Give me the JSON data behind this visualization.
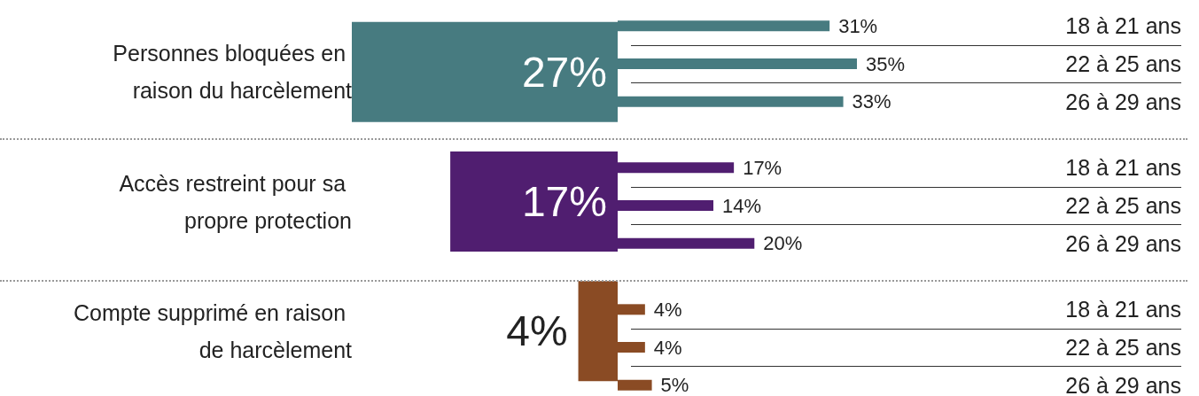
{
  "chart_data": [
    {
      "type": "bar",
      "orientation": "horizontal",
      "categories": [
        "Personnes bloquées en raison du harcèlement",
        "Accès restreint pour sa propre protection",
        "Compte supprimé en raison de harcèlement"
      ],
      "values": [
        27,
        17,
        4
      ],
      "colors": [
        "#477b80",
        "#501e70",
        "#8a4b24"
      ],
      "value_labels": [
        "27%",
        "17%",
        "4%"
      ],
      "tick_labels": "y"
    },
    {
      "type": "bar",
      "orientation": "horizontal",
      "categories": [
        "18 à 21 ans",
        "22 à 25 ans",
        "26 à 29 ans"
      ],
      "values": [
        31,
        35,
        33
      ],
      "color": "#477b80",
      "value_labels": [
        "31%",
        "35%",
        "33%"
      ],
      "tick_labels": "y"
    },
    {
      "type": "bar",
      "orientation": "horizontal",
      "categories": [
        "18 à 21 ans",
        "22 à 25 ans",
        "26 à 29 ans"
      ],
      "values": [
        17,
        14,
        20
      ],
      "color": "#501e70",
      "value_labels": [
        "17%",
        "14%",
        "20%"
      ],
      "tick_labels": "y"
    },
    {
      "type": "bar",
      "orientation": "horizontal",
      "categories": [
        "18 à 21 ans",
        "22 à 25 ans",
        "26 à 29 ans"
      ],
      "values": [
        4,
        4,
        5
      ],
      "color": "#8a4b24",
      "value_labels": [
        "4%",
        "4%",
        "5%"
      ],
      "tick_labels": "y"
    }
  ]
}
